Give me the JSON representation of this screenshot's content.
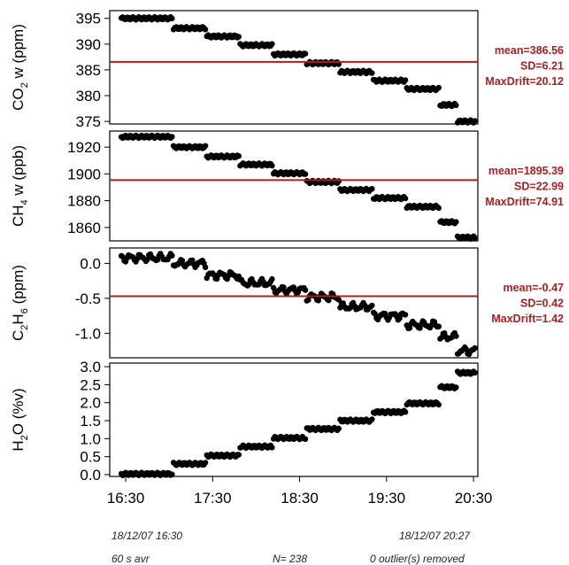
{
  "chart_data": [
    {
      "type": "scatter",
      "ylabel": {
        "base": "CO",
        "sub": "2",
        "rest": " w (ppm)"
      },
      "ylim": [
        374.5,
        396.5
      ],
      "yticks": [
        375,
        380,
        385,
        390,
        395
      ],
      "ytick_labels": [
        "375",
        "380",
        "385",
        "390",
        "395"
      ],
      "mean_line": 386.56,
      "stats": [
        "mean=386.56",
        "SD=6.21",
        "MaxDrift=20.12"
      ],
      "levels": [
        395.0,
        393.1,
        391.5,
        389.8,
        388.0,
        386.3,
        384.6,
        382.9,
        381.3,
        378.2,
        375.0
      ]
    },
    {
      "type": "scatter",
      "ylabel": {
        "base": "CH",
        "sub": "4",
        "rest": " w (ppb)"
      },
      "ylim": [
        1850,
        1932
      ],
      "yticks": [
        1860,
        1880,
        1900,
        1920
      ],
      "ytick_labels": [
        "1860",
        "1880",
        "1900",
        "1920"
      ],
      "mean_line": 1895.39,
      "stats": [
        "mean=1895.39",
        "SD=22.99",
        "MaxDrift=74.91"
      ],
      "levels": [
        1927.8,
        1920.0,
        1913.0,
        1907.0,
        1900.5,
        1894.0,
        1888.0,
        1882.0,
        1875.5,
        1864.0,
        1852.5
      ]
    },
    {
      "type": "scatter",
      "ylabel": {
        "base": "C",
        "sub": "2",
        "rest": "H",
        "sub2": "6",
        "rest2": " (ppm)"
      },
      "ylim": [
        -1.35,
        0.22
      ],
      "yticks": [
        -1.0,
        -0.5,
        0.0
      ],
      "ytick_labels": [
        "-1.0",
        "-0.5",
        "0.0"
      ],
      "mean_line": -0.47,
      "stats": [
        "mean=-0.47",
        "SD=0.42",
        "MaxDrift=1.42"
      ],
      "levels": [
        0.08,
        0.0,
        -0.17,
        -0.28,
        -0.38,
        -0.48,
        -0.62,
        -0.75,
        -0.88,
        -1.05,
        -1.25
      ]
    },
    {
      "type": "scatter",
      "ylabel": {
        "base": "H",
        "sub": "2",
        "rest": "O (%v)"
      },
      "ylim": [
        -0.05,
        3.1
      ],
      "yticks": [
        0.0,
        0.5,
        1.0,
        1.5,
        2.0,
        2.5,
        3.0
      ],
      "ytick_labels": [
        "0.0",
        "0.5",
        "1.0",
        "1.5",
        "2.0",
        "2.5",
        "3.0"
      ],
      "mean_line": null,
      "stats": [],
      "levels": [
        0.02,
        0.3,
        0.53,
        0.78,
        1.02,
        1.27,
        1.5,
        1.74,
        1.98,
        2.43,
        2.83
      ]
    }
  ],
  "x_axis": {
    "xlim_minutes": [
      979,
      1233
    ],
    "ticks_minutes": [
      990,
      1050,
      1110,
      1170,
      1230
    ],
    "tick_labels": [
      "16:30",
      "17:30",
      "18:30",
      "19:30",
      "20:30"
    ],
    "step_segments_minutes": [
      [
        987,
        1022
      ],
      [
        1023,
        1045
      ],
      [
        1046,
        1068
      ],
      [
        1069,
        1091
      ],
      [
        1092,
        1114
      ],
      [
        1115,
        1137
      ],
      [
        1138,
        1160
      ],
      [
        1161,
        1183
      ],
      [
        1184,
        1206
      ],
      [
        1207,
        1218
      ],
      [
        1219,
        1235
      ]
    ]
  },
  "footer": {
    "start_time": "18/12/07 16:30",
    "end_time": "18/12/07 20:27",
    "averaging": "60 s  avr",
    "count": "N= 238",
    "outliers": "0 outlier(s) removed"
  },
  "colors": {
    "mean_line": "#aa1f1f",
    "stats_text": "#aa1f1f",
    "points": "#000000",
    "axes": "#000000"
  }
}
